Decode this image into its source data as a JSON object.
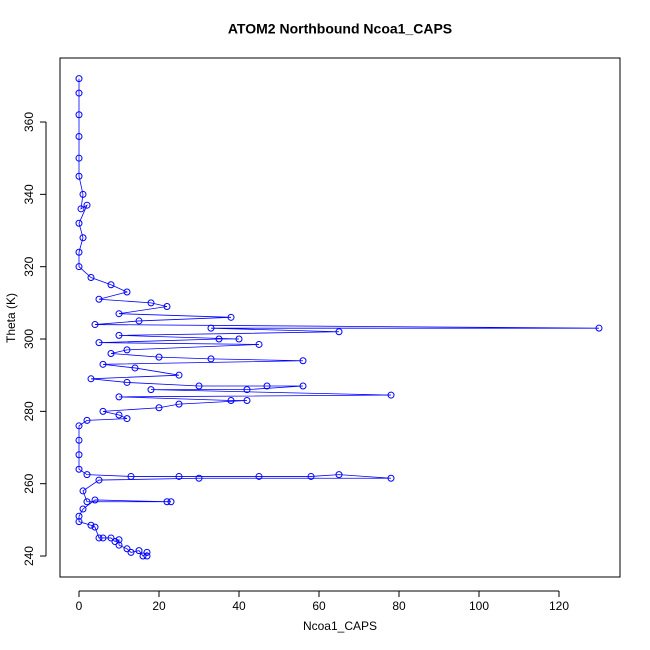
{
  "chart_data": {
    "type": "line",
    "markers": "circle",
    "title": "ATOM2 Northbound Ncoa1_CAPS",
    "x_label": "Ncoa1_CAPS",
    "y_label": "Theta (K)",
    "color": "#0000ff",
    "xlim": [
      -4.75,
      135.25
    ],
    "ylim": [
      234.2,
      377.7
    ],
    "xticks": [
      0,
      20,
      40,
      60,
      80,
      100,
      120
    ],
    "yticks": [
      240,
      260,
      280,
      300,
      320,
      340,
      360
    ],
    "x": [
      0,
      0,
      0,
      0,
      0,
      0,
      1,
      0.5,
      2,
      0,
      1,
      0,
      0,
      3,
      8,
      12,
      5,
      18,
      22,
      10,
      38,
      15,
      4,
      130,
      33,
      65,
      10,
      40,
      35,
      5,
      45,
      12,
      8,
      20,
      33,
      56,
      6,
      14,
      25,
      3,
      12,
      30,
      47,
      56,
      42,
      18,
      78,
      10,
      38,
      42,
      25,
      20,
      6,
      10,
      12,
      2,
      0,
      0,
      0,
      0,
      2,
      13,
      25,
      45,
      58,
      65,
      78,
      30,
      5,
      1,
      2,
      22,
      23,
      4,
      1,
      0,
      0,
      3,
      4,
      5,
      6,
      8,
      9,
      10,
      10,
      12,
      13,
      15,
      16,
      17,
      17
    ],
    "values": [
      372,
      368,
      362,
      356,
      350,
      345,
      340,
      336,
      337,
      332,
      328,
      324,
      320,
      317,
      315,
      313,
      311,
      310,
      309,
      307,
      306,
      305,
      304,
      303,
      303,
      302,
      301,
      300,
      300,
      299,
      298.5,
      297,
      296,
      295,
      294.5,
      294,
      293,
      292,
      290,
      289,
      288,
      287,
      287,
      287,
      286,
      286,
      284.5,
      284,
      283,
      283,
      282,
      281,
      280,
      279,
      278,
      277.5,
      276,
      272,
      268,
      264,
      262.5,
      262,
      262,
      262,
      262,
      262.5,
      261.5,
      261.5,
      261,
      258,
      255,
      255,
      255,
      255.5,
      253,
      251,
      249.5,
      248.5,
      248,
      245,
      245,
      245,
      244,
      244.5,
      243,
      242,
      241,
      241.5,
      240,
      241,
      240
    ]
  }
}
